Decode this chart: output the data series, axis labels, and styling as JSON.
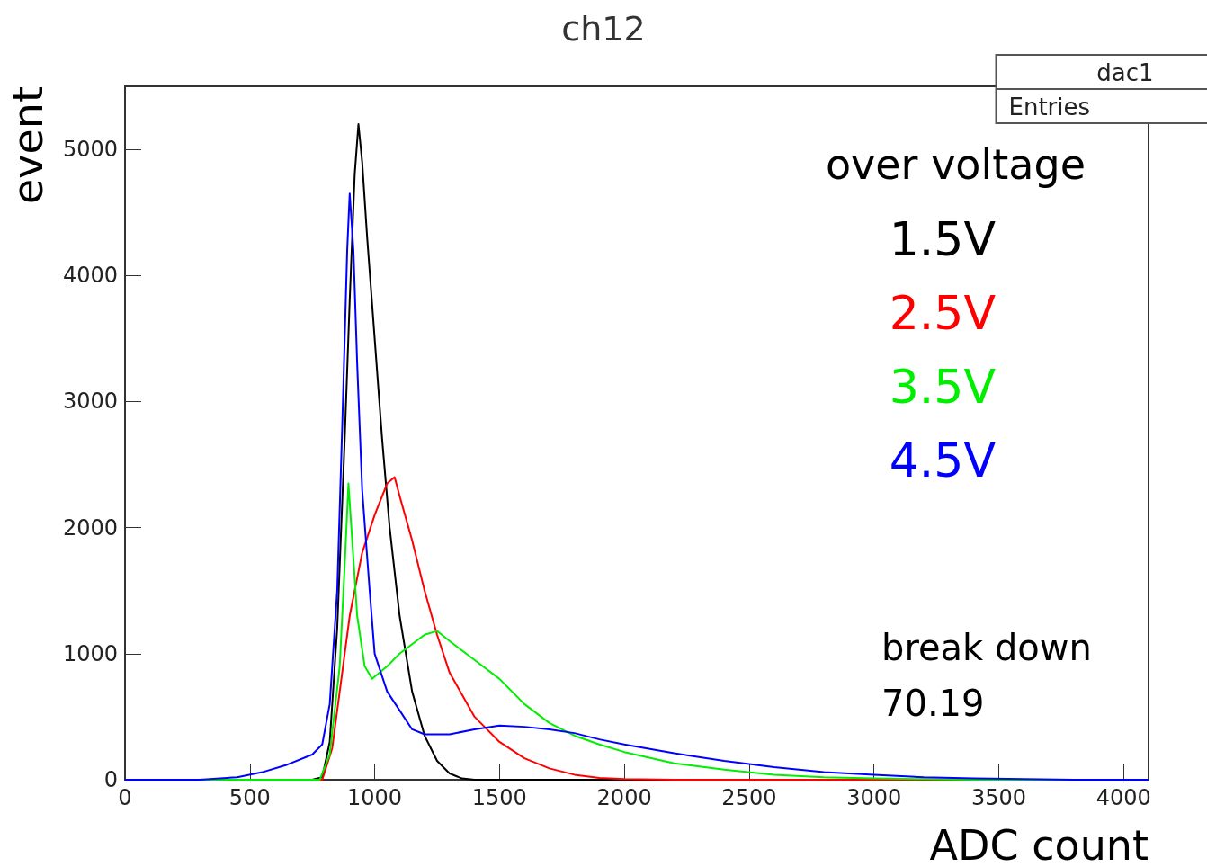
{
  "chart_data": {
    "type": "line",
    "title": "ch12",
    "xlabel": "ADC count",
    "ylabel": "event",
    "legend_title": "over voltage",
    "xlim": [
      0,
      4100
    ],
    "xticks": [
      0,
      500,
      1000,
      1500,
      2000,
      2500,
      3000,
      3500,
      4000
    ],
    "ylim": [
      0,
      5500
    ],
    "yticks": [
      0,
      1000,
      2000,
      3000,
      4000,
      5000
    ],
    "grid": false,
    "legend": "right",
    "marker": "none",
    "line_style": "solid",
    "annotations": [
      "dac1",
      "Entries",
      "break down",
      "70.19"
    ],
    "series": [
      {
        "name": "1.5V",
        "color": "#000000",
        "x": [
          0,
          750,
          790,
          820,
          850,
          880,
          900,
          920,
          935,
          950,
          970,
          1000,
          1030,
          1060,
          1100,
          1150,
          1200,
          1250,
          1300,
          1350,
          1400,
          4100
        ],
        "values": [
          0,
          0,
          20,
          300,
          1200,
          2700,
          3800,
          4800,
          5200,
          4900,
          4300,
          3500,
          2700,
          2000,
          1300,
          700,
          350,
          150,
          50,
          10,
          0,
          0
        ]
      },
      {
        "name": "2.5V",
        "color": "#ff0000",
        "x": [
          0,
          790,
          830,
          860,
          900,
          950,
          1000,
          1050,
          1080,
          1100,
          1150,
          1200,
          1250,
          1300,
          1400,
          1500,
          1600,
          1700,
          1800,
          1900,
          2000,
          2200,
          4100
        ],
        "values": [
          0,
          0,
          250,
          700,
          1300,
          1800,
          2100,
          2350,
          2400,
          2250,
          1900,
          1500,
          1150,
          850,
          500,
          300,
          170,
          90,
          40,
          15,
          5,
          0,
          0
        ]
      },
      {
        "name": "3.5V",
        "color": "#00ee00",
        "x": [
          0,
          780,
          820,
          860,
          880,
          895,
          910,
          930,
          960,
          990,
          1050,
          1100,
          1200,
          1250,
          1300,
          1400,
          1500,
          1600,
          1700,
          1800,
          1900,
          2000,
          2200,
          2400,
          2600,
          2800,
          3000,
          3200,
          3400,
          4100
        ],
        "values": [
          0,
          0,
          200,
          900,
          1700,
          2350,
          1900,
          1300,
          900,
          800,
          900,
          1000,
          1150,
          1180,
          1100,
          950,
          800,
          600,
          450,
          350,
          280,
          220,
          130,
          80,
          40,
          20,
          10,
          5,
          0,
          0
        ]
      },
      {
        "name": "4.5V",
        "color": "#0000ff",
        "x": [
          0,
          300,
          450,
          550,
          650,
          750,
          790,
          820,
          850,
          870,
          890,
          900,
          915,
          930,
          950,
          980,
          1000,
          1050,
          1100,
          1150,
          1200,
          1300,
          1400,
          1500,
          1600,
          1700,
          1800,
          1900,
          2000,
          2200,
          2400,
          2600,
          2800,
          3000,
          3200,
          3400,
          3600,
          3800,
          4100
        ],
        "values": [
          0,
          0,
          20,
          60,
          120,
          200,
          280,
          600,
          1500,
          2800,
          4200,
          4650,
          4200,
          3300,
          2300,
          1500,
          1000,
          700,
          550,
          400,
          360,
          360,
          400,
          430,
          420,
          400,
          370,
          320,
          280,
          210,
          150,
          100,
          60,
          40,
          20,
          10,
          5,
          0,
          0
        ]
      }
    ]
  }
}
